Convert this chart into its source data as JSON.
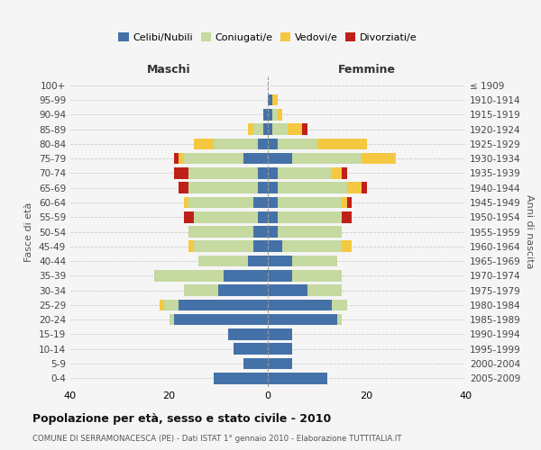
{
  "age_groups": [
    "0-4",
    "5-9",
    "10-14",
    "15-19",
    "20-24",
    "25-29",
    "30-34",
    "35-39",
    "40-44",
    "45-49",
    "50-54",
    "55-59",
    "60-64",
    "65-69",
    "70-74",
    "75-79",
    "80-84",
    "85-89",
    "90-94",
    "95-99",
    "100+"
  ],
  "birth_years": [
    "2005-2009",
    "2000-2004",
    "1995-1999",
    "1990-1994",
    "1985-1989",
    "1980-1984",
    "1975-1979",
    "1970-1974",
    "1965-1969",
    "1960-1964",
    "1955-1959",
    "1950-1954",
    "1945-1949",
    "1940-1944",
    "1935-1939",
    "1930-1934",
    "1925-1929",
    "1920-1924",
    "1915-1919",
    "1910-1914",
    "≤ 1909"
  ],
  "male": {
    "celibe": [
      11,
      5,
      7,
      8,
      19,
      18,
      10,
      9,
      4,
      3,
      3,
      2,
      3,
      2,
      2,
      5,
      2,
      1,
      1,
      0,
      0
    ],
    "coniugato": [
      0,
      0,
      0,
      0,
      1,
      3,
      7,
      14,
      10,
      12,
      13,
      13,
      13,
      14,
      14,
      12,
      9,
      2,
      0,
      0,
      0
    ],
    "vedovo": [
      0,
      0,
      0,
      0,
      0,
      1,
      0,
      0,
      0,
      1,
      0,
      0,
      1,
      0,
      0,
      1,
      4,
      1,
      0,
      0,
      0
    ],
    "divorziato": [
      0,
      0,
      0,
      0,
      0,
      0,
      0,
      0,
      0,
      0,
      0,
      2,
      0,
      2,
      3,
      1,
      0,
      0,
      0,
      0,
      0
    ]
  },
  "female": {
    "nubile": [
      12,
      5,
      5,
      5,
      14,
      13,
      8,
      5,
      5,
      3,
      2,
      2,
      2,
      2,
      2,
      5,
      2,
      1,
      1,
      1,
      0
    ],
    "coniugata": [
      0,
      0,
      0,
      0,
      1,
      3,
      7,
      10,
      9,
      12,
      13,
      13,
      13,
      14,
      11,
      14,
      8,
      3,
      1,
      0,
      0
    ],
    "vedova": [
      0,
      0,
      0,
      0,
      0,
      0,
      0,
      0,
      0,
      2,
      0,
      0,
      1,
      3,
      2,
      7,
      10,
      3,
      1,
      1,
      0
    ],
    "divorziata": [
      0,
      0,
      0,
      0,
      0,
      0,
      0,
      0,
      0,
      0,
      0,
      2,
      1,
      1,
      1,
      0,
      0,
      1,
      0,
      0,
      0
    ]
  },
  "colors": {
    "celibe_nubile": "#4472a8",
    "coniugato_a": "#c5d9a0",
    "vedovo_a": "#f5c842",
    "divorziato_a": "#c0201a"
  },
  "xlim": 40,
  "title": "Popolazione per età, sesso e stato civile - 2010",
  "subtitle": "COMUNE DI SERRAMONACESCA (PE) - Dati ISTAT 1° gennaio 2010 - Elaborazione TUTTITALIA.IT",
  "ylabel_left": "Fasce di età",
  "ylabel_right": "Anni di nascita",
  "xlabel_left": "Maschi",
  "xlabel_right": "Femmine",
  "background_color": "#f5f5f5"
}
